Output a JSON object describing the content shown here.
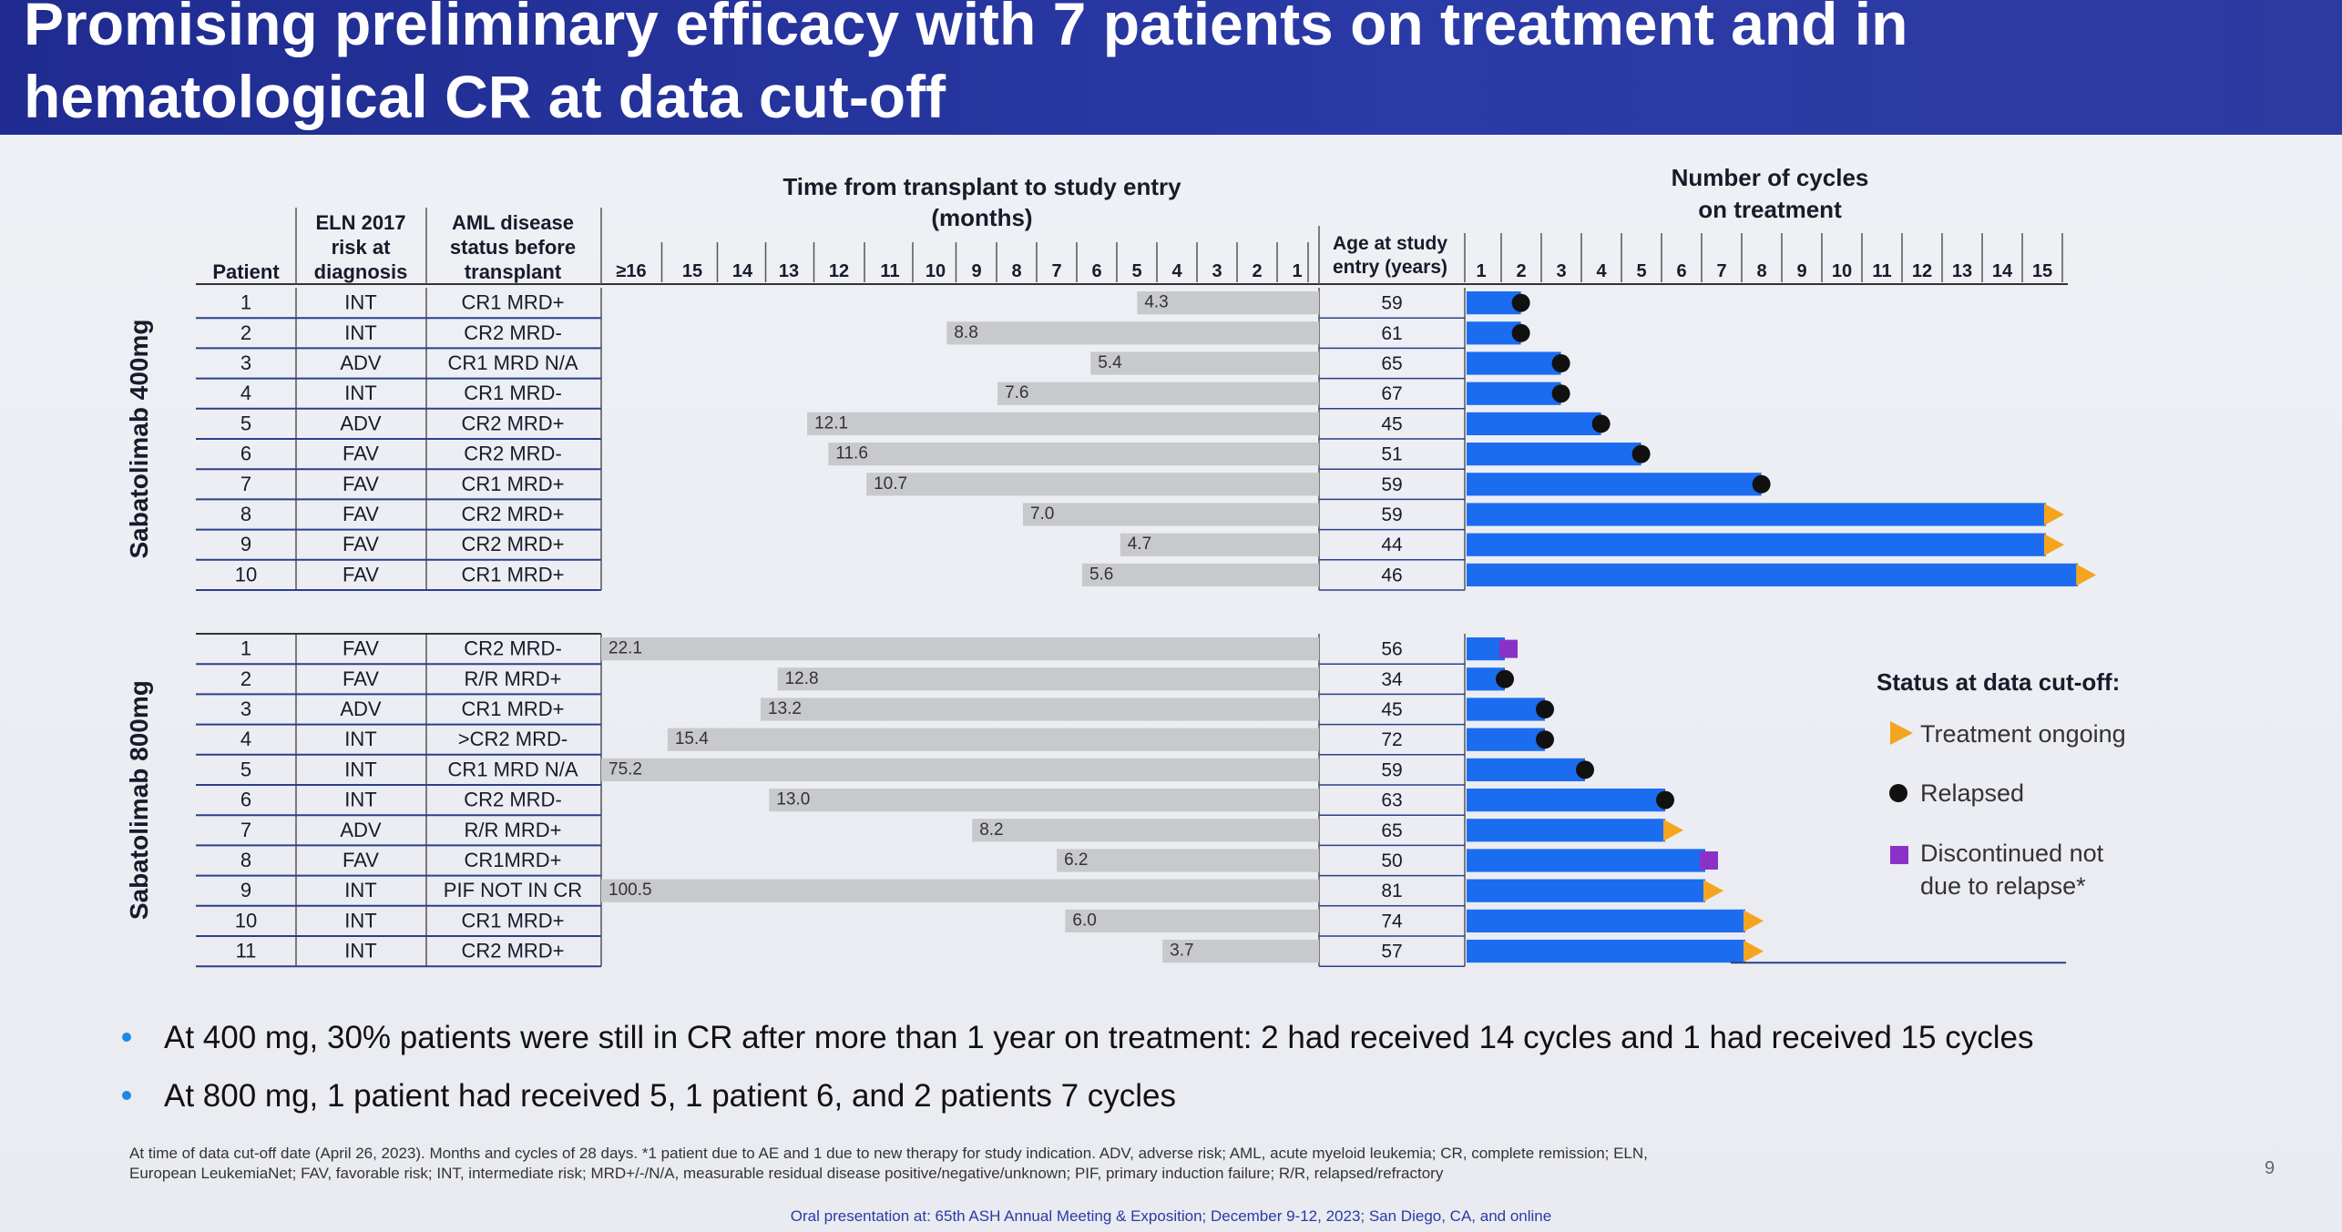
{
  "title": "Promising preliminary efficacy with 7 patients on treatment and in\nhematological CR at data cut-off",
  "table_headers": {
    "patient": "Patient",
    "eln": "ELN 2017 risk at diagnosis",
    "aml": "AML disease status before transplant",
    "time": "Time from transplant to study entry (months)",
    "age": "Age at study entry (years)",
    "cycles": "Number of cycles on treatment"
  },
  "time_axis_labels": [
    "≥16",
    "15",
    "14",
    "13",
    "12",
    "11",
    "10",
    "9",
    "8",
    "7",
    "6",
    "5",
    "4",
    "3",
    "2",
    "1"
  ],
  "cycle_axis_labels": [
    "1",
    "2",
    "3",
    "4",
    "5",
    "6",
    "7",
    "8",
    "9",
    "10",
    "11",
    "12",
    "13",
    "14",
    "15"
  ],
  "legend": {
    "title": "Status at data cut-off:",
    "ongoing": "Treatment ongoing",
    "relapsed": "Relapsed",
    "discontinued": "Discontinued not due to relapse*"
  },
  "colors": {
    "bar_blue": "#1c6cf0",
    "gray_bar": "#c8c9cd",
    "ongoing_orange": "#f5a41f",
    "relapsed_black": "#111111",
    "discontinued_purple": "#8a32c8"
  },
  "chart_data": {
    "type": "bar",
    "groups": [
      {
        "name": "Sabatolimab 400mg",
        "patients": [
          {
            "id": "1",
            "eln": "INT",
            "status": "CR1 MRD+",
            "time_label": "4.3",
            "time": 4.3,
            "age": "59",
            "cycles": 1.4,
            "outcome": "relapsed"
          },
          {
            "id": "2",
            "eln": "INT",
            "status": "CR2 MRD-",
            "time_label": "8.8",
            "time": 8.8,
            "age": "61",
            "cycles": 1.4,
            "outcome": "relapsed"
          },
          {
            "id": "3",
            "eln": "ADV",
            "status": "CR1 MRD N/A",
            "time_label": "5.4",
            "time": 5.4,
            "age": "65",
            "cycles": 2.4,
            "outcome": "relapsed"
          },
          {
            "id": "4",
            "eln": "INT",
            "status": "CR1 MRD-",
            "time_label": "7.6",
            "time": 7.6,
            "age": "67",
            "cycles": 2.4,
            "outcome": "relapsed"
          },
          {
            "id": "5",
            "eln": "ADV",
            "status": "CR2 MRD+",
            "time_label": "12.1",
            "time": 12.1,
            "age": "45",
            "cycles": 3.4,
            "outcome": "relapsed"
          },
          {
            "id": "6",
            "eln": "FAV",
            "status": "CR2 MRD-",
            "time_label": "11.6",
            "time": 11.6,
            "age": "51",
            "cycles": 4.4,
            "outcome": "relapsed"
          },
          {
            "id": "7",
            "eln": "FAV",
            "status": "CR1 MRD+",
            "time_label": "10.7",
            "time": 10.7,
            "age": "59",
            "cycles": 7.4,
            "outcome": "relapsed"
          },
          {
            "id": "8",
            "eln": "FAV",
            "status": "CR2 MRD+",
            "time_label": "7.0",
            "time": 7.0,
            "age": "59",
            "cycles": 14.5,
            "outcome": "ongoing"
          },
          {
            "id": "9",
            "eln": "FAV",
            "status": "CR2 MRD+",
            "time_label": "4.7",
            "time": 4.7,
            "age": "44",
            "cycles": 14.5,
            "outcome": "ongoing"
          },
          {
            "id": "10",
            "eln": "FAV",
            "status": "CR1 MRD+",
            "time_label": "5.6",
            "time": 5.6,
            "age": "46",
            "cycles": 15.3,
            "outcome": "ongoing"
          }
        ]
      },
      {
        "name": "Sabatolimab 800mg",
        "patients": [
          {
            "id": "1",
            "eln": "FAV",
            "status": "CR2 MRD-",
            "time_label": "22.1",
            "time": 22.1,
            "age": "56",
            "cycles": 1.0,
            "outcome": "discontinued"
          },
          {
            "id": "2",
            "eln": "FAV",
            "status": "R/R MRD+",
            "time_label": "12.8",
            "time": 12.8,
            "age": "34",
            "cycles": 1.0,
            "outcome": "relapsed"
          },
          {
            "id": "3",
            "eln": "ADV",
            "status": "CR1 MRD+",
            "time_label": "13.2",
            "time": 13.2,
            "age": "45",
            "cycles": 2.0,
            "outcome": "relapsed"
          },
          {
            "id": "4",
            "eln": "INT",
            "status": ">CR2 MRD-",
            "time_label": "15.4",
            "time": 15.4,
            "age": "72",
            "cycles": 2.0,
            "outcome": "relapsed"
          },
          {
            "id": "5",
            "eln": "INT",
            "status": "CR1 MRD N/A",
            "time_label": "75.2",
            "time": 75.2,
            "age": "59",
            "cycles": 3.0,
            "outcome": "relapsed"
          },
          {
            "id": "6",
            "eln": "INT",
            "status": "CR2 MRD-",
            "time_label": "13.0",
            "time": 13.0,
            "age": "63",
            "cycles": 5.0,
            "outcome": "relapsed"
          },
          {
            "id": "7",
            "eln": "ADV",
            "status": "R/R MRD+",
            "time_label": "8.2",
            "time": 8.2,
            "age": "65",
            "cycles": 5.0,
            "outcome": "ongoing"
          },
          {
            "id": "8",
            "eln": "FAV",
            "status": "CR1MRD+",
            "time_label": "6.2",
            "time": 6.2,
            "age": "50",
            "cycles": 6.0,
            "outcome": "discontinued"
          },
          {
            "id": "9",
            "eln": "INT",
            "status": "PIF NOT IN CR",
            "time_label": "100.5",
            "time": 100.5,
            "age": "81",
            "cycles": 6.0,
            "outcome": "ongoing"
          },
          {
            "id": "10",
            "eln": "INT",
            "status": "CR1 MRD+",
            "time_label": "6.0",
            "time": 6.0,
            "age": "74",
            "cycles": 7.0,
            "outcome": "ongoing"
          },
          {
            "id": "11",
            "eln": "INT",
            "status": "CR2 MRD+",
            "time_label": "3.7",
            "time": 3.7,
            "age": "57",
            "cycles": 7.0,
            "outcome": "ongoing"
          }
        ]
      }
    ]
  },
  "bullets": [
    "At 400 mg, 30% patients were still in CR after more than 1 year on treatment: 2 had received 14 cycles and 1 had received 15 cycles",
    "At 800 mg, 1 patient had received 5, 1 patient 6, and 2 patients 7 cycles"
  ],
  "footnote": [
    "At time of data cut-off date (April 26, 2023). Months and cycles of 28 days. *1 patient due to AE and 1 due to new therapy for study indication. ADV, adverse risk; AML, acute myeloid leukemia; CR, complete remission; ELN,",
    "European LeukemiaNet; FAV, favorable risk; INT, intermediate risk; MRD+/-/N/A, measurable residual disease positive/negative/unknown; PIF, primary induction failure; R/R, relapsed/refractory"
  ],
  "page_number": "9",
  "conference": "Oral presentation at: 65th ASH Annual Meeting & Exposition; December 9-12, 2023; San Diego, CA, and online"
}
